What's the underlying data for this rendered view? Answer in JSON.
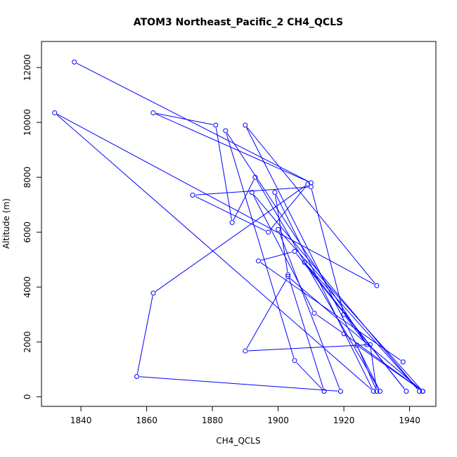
{
  "chart_data": {
    "type": "line",
    "title": "ATOM3 Northeast_Pacific_2 CH4_QCLS",
    "xlabel": "CH4_QCLS",
    "ylabel": "Altitude (m)",
    "xlim": [
      1828,
      1948
    ],
    "ylim": [
      -350,
      12950
    ],
    "x_ticks": [
      1840,
      1860,
      1880,
      1900,
      1920,
      1940
    ],
    "y_ticks": [
      0,
      2000,
      4000,
      6000,
      8000,
      10000,
      12000
    ],
    "grid": false,
    "legend": "none",
    "color": "#0000ff",
    "markers": "open-circle",
    "x": [
      1838,
      1910,
      1862,
      1881,
      1886,
      1893,
      1931,
      1890,
      1930,
      1832,
      1929,
      1899,
      1903,
      1914,
      1905,
      1884,
      1927,
      1920,
      1910,
      1874,
      1897,
      1909,
      1862,
      1857,
      1919,
      1900,
      1944,
      1924,
      1930,
      1928,
      1890,
      1903,
      1944,
      1920,
      1911,
      1892,
      1943,
      1908,
      1939,
      1905,
      1894,
      1938
    ],
    "y": [
      12200,
      7800,
      10350,
      9900,
      6350,
      8000,
      200,
      9900,
      4050,
      10350,
      200,
      7450,
      4450,
      200,
      1320,
      9700,
      1900,
      3000,
      7650,
      7350,
      6000,
      7750,
      3780,
      740,
      200,
      6100,
      200,
      1880,
      200,
      1900,
      1670,
      4380,
      200,
      2300,
      3050,
      7450,
      200,
      4900,
      200,
      5300,
      4950,
      1270
    ]
  }
}
